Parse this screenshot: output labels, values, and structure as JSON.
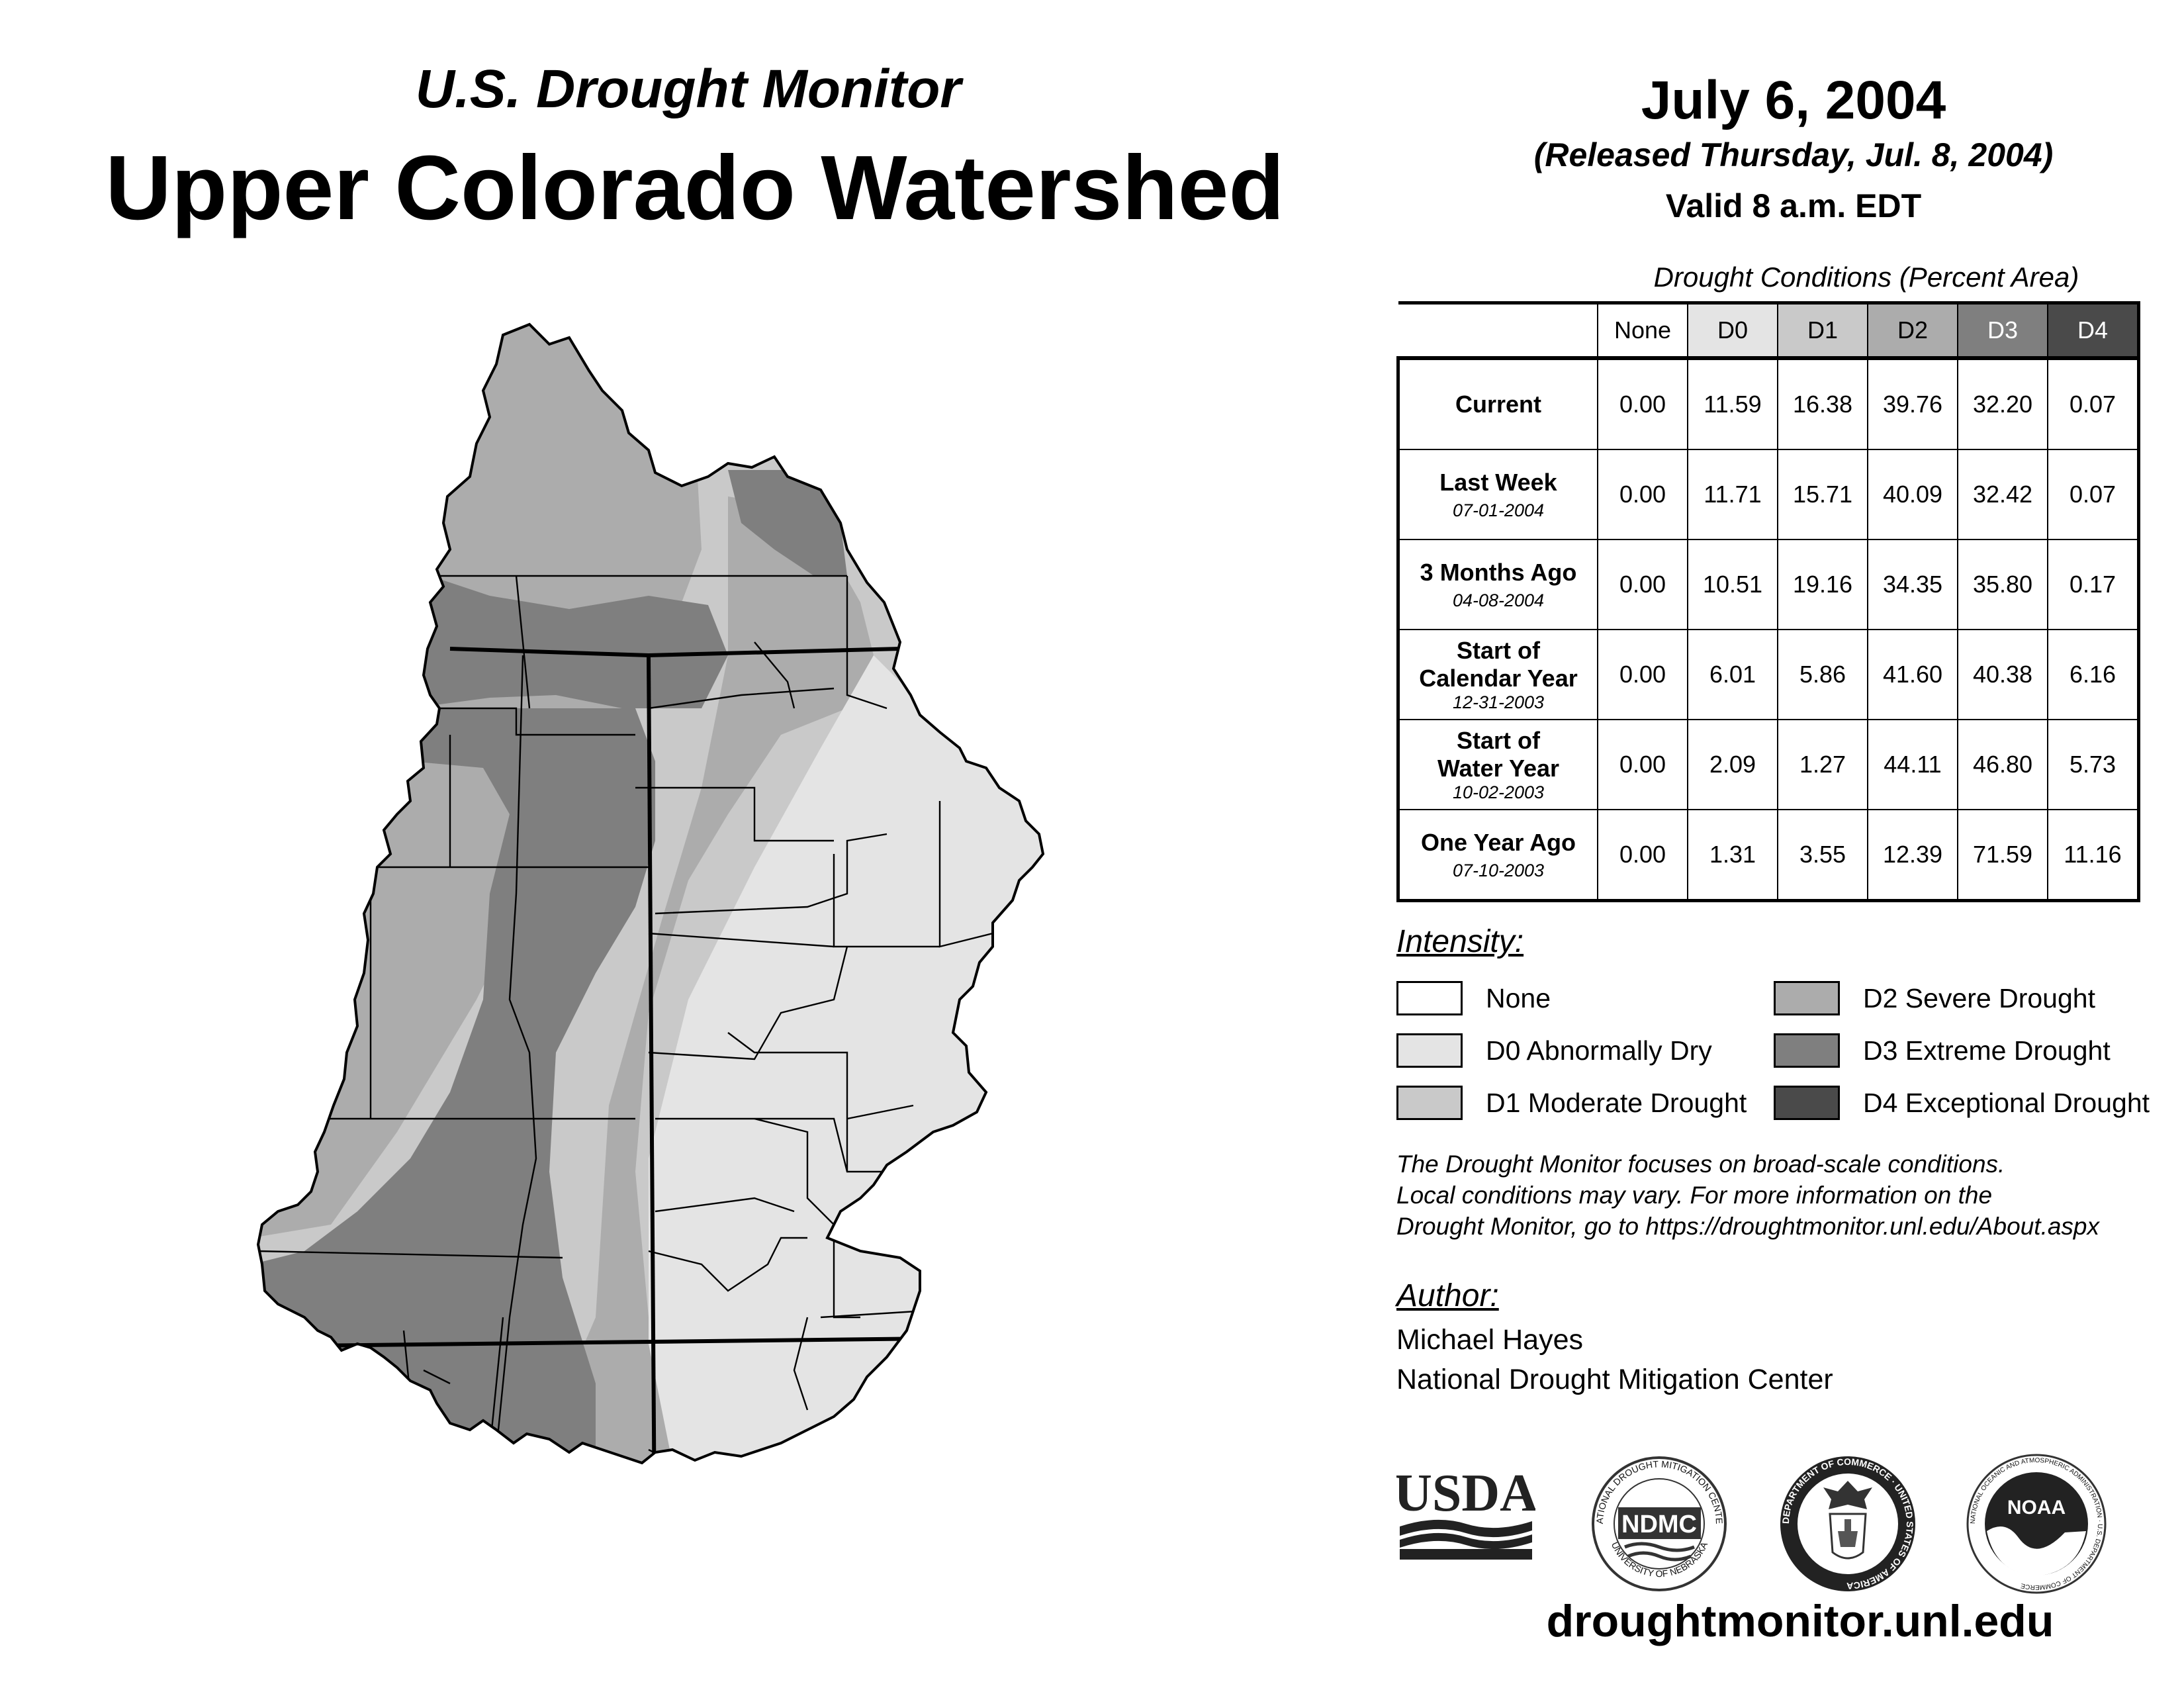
{
  "header": {
    "subtitle": "U.S. Drought Monitor",
    "title": "Upper Colorado Watershed",
    "date": "July 6, 2004",
    "released": "(Released Thursday, Jul. 8, 2004)",
    "valid": "Valid 8 a.m. EDT"
  },
  "table": {
    "caption": "Drought Conditions (Percent Area)",
    "columns": [
      "None",
      "D0",
      "D1",
      "D2",
      "D3",
      "D4"
    ],
    "rows": [
      {
        "label": "Current",
        "label2": "",
        "date": "",
        "values": [
          "0.00",
          "11.59",
          "16.38",
          "39.76",
          "32.20",
          "0.07"
        ]
      },
      {
        "label": "Last Week",
        "label2": "",
        "date": "07-01-2004",
        "values": [
          "0.00",
          "11.71",
          "15.71",
          "40.09",
          "32.42",
          "0.07"
        ]
      },
      {
        "label": "3 Months Ago",
        "label2": "",
        "date": "04-08-2004",
        "values": [
          "0.00",
          "10.51",
          "19.16",
          "34.35",
          "35.80",
          "0.17"
        ]
      },
      {
        "label": "Start of",
        "label2": "Calendar Year",
        "date": "12-31-2003",
        "values": [
          "0.00",
          "6.01",
          "5.86",
          "41.60",
          "40.38",
          "6.16"
        ]
      },
      {
        "label": "Start of",
        "label2": "Water Year",
        "date": "10-02-2003",
        "values": [
          "0.00",
          "2.09",
          "1.27",
          "44.11",
          "46.80",
          "5.73"
        ]
      },
      {
        "label": "One Year Ago",
        "label2": "",
        "date": "07-10-2003",
        "values": [
          "0.00",
          "1.31",
          "3.55",
          "12.39",
          "71.59",
          "11.16"
        ]
      }
    ]
  },
  "legend": {
    "title": "Intensity:",
    "items": [
      {
        "label": "None",
        "color": "#ffffff"
      },
      {
        "label": "D0 Abnormally Dry",
        "color": "#e4e4e4"
      },
      {
        "label": "D1 Moderate Drought",
        "color": "#c9c9c9"
      },
      {
        "label": "D2 Severe Drought",
        "color": "#acacac"
      },
      {
        "label": "D3 Extreme Drought",
        "color": "#7f7f7f"
      },
      {
        "label": "D4 Exceptional Drought",
        "color": "#4a4a4a"
      }
    ]
  },
  "note": {
    "line1": "The Drought Monitor focuses on broad-scale conditions.",
    "line2": "Local conditions may vary. For more information on the",
    "line3": "Drought Monitor, go to https://droughtmonitor.unl.edu/About.aspx"
  },
  "author": {
    "title": "Author:",
    "name": "Michael Hayes",
    "org": "National Drought Mitigation Center"
  },
  "logos": {
    "usda": "USDA",
    "ndmc": "NDMC",
    "ndmc_ring_top": "NATIONAL DROUGHT MITIGATION CENTER",
    "ndmc_ring_bottom": "UNIVERSITY OF NEBRASKA",
    "doc_ring": "DEPARTMENT OF COMMERCE · UNITED STATES OF AMERICA",
    "noaa": "NOAA",
    "noaa_ring": "NATIONAL OCEANIC AND ATMOSPHERIC ADMINISTRATION · U.S. DEPARTMENT OF COMMERCE"
  },
  "footer": {
    "url": "droughtmonitor.unl.edu"
  }
}
